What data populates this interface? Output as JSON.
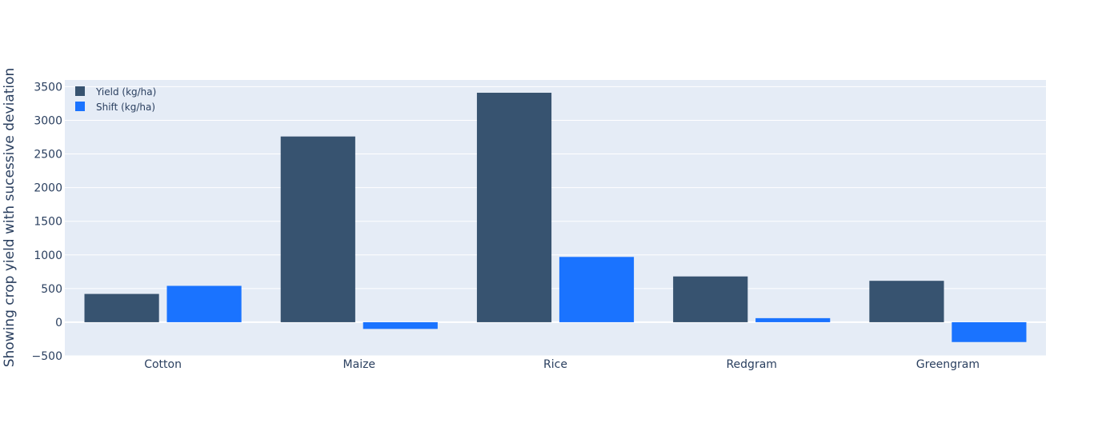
{
  "chart_data": {
    "type": "bar",
    "categories": [
      "Cotton",
      "Maize",
      "Rice",
      "Redgram",
      "Greengram"
    ],
    "series": [
      {
        "name": "Yield (kg/ha)",
        "values": [
          420,
          2760,
          3410,
          680,
          615
        ],
        "color": "#375370"
      },
      {
        "name": "Shift (kg/ha)",
        "values": [
          540,
          -100,
          970,
          60,
          -295
        ],
        "color": "#1a73ff"
      }
    ],
    "title": "",
    "xlabel": "",
    "ylabel": "Showing crop yield with sucessive deviation",
    "ylim": [
      -500,
      3600
    ],
    "yticks": [
      -500,
      0,
      500,
      1000,
      1500,
      2000,
      2500,
      3000,
      3500
    ],
    "ytick_labels": [
      "−500",
      "0",
      "500",
      "1000",
      "1500",
      "2000",
      "2500",
      "3000",
      "3500"
    ],
    "grid": true,
    "legend_position": "top-left",
    "plot_background": "#e5ecf6"
  }
}
